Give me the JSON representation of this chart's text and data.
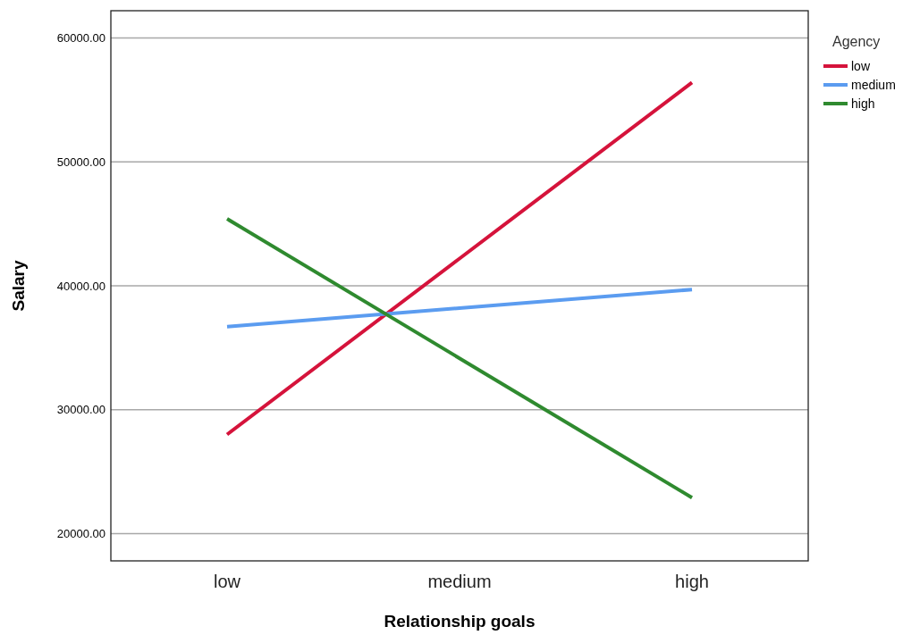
{
  "chart_data": {
    "type": "line",
    "xlabel": "Relationship goals",
    "ylabel": "Salary",
    "legend_title": "Agency",
    "categories": [
      "low",
      "medium",
      "high"
    ],
    "series": [
      {
        "name": "low",
        "color": "#d5133b",
        "values": [
          28000,
          42200,
          56400
        ]
      },
      {
        "name": "medium",
        "color": "#5b9cf0",
        "values": [
          36700,
          38200,
          39700
        ]
      },
      {
        "name": "high",
        "color": "#2f8a2f",
        "values": [
          45400,
          34150,
          22900
        ]
      }
    ],
    "ylim": [
      17800,
      62200
    ],
    "yticks": [
      {
        "value": 20000,
        "label": "20000.00"
      },
      {
        "value": 30000,
        "label": "30000.00"
      },
      {
        "value": 40000,
        "label": "40000.00"
      },
      {
        "value": 50000,
        "label": "50000.00"
      },
      {
        "value": 60000,
        "label": "60000.00"
      }
    ],
    "grid": "y",
    "legend": "right",
    "marker": "none",
    "line_style": "solid"
  }
}
